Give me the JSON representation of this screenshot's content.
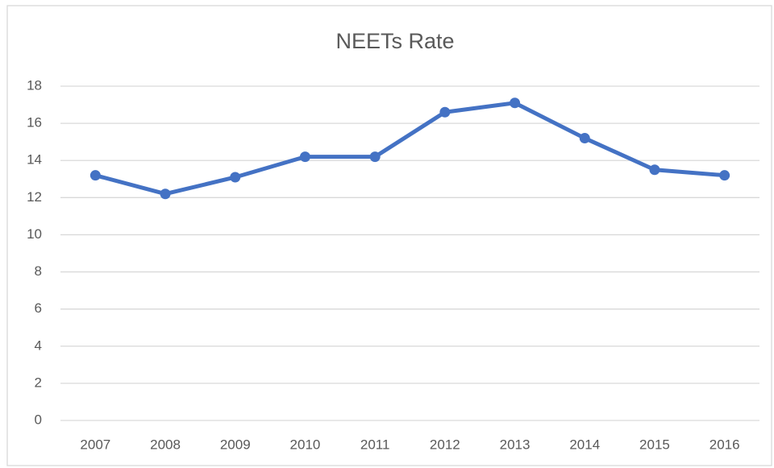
{
  "chart_data": {
    "type": "line",
    "title": "NEETs Rate",
    "categories": [
      "2007",
      "2008",
      "2009",
      "2010",
      "2011",
      "2012",
      "2013",
      "2014",
      "2015",
      "2016"
    ],
    "values": [
      13.2,
      12.2,
      13.1,
      14.2,
      14.2,
      16.6,
      17.1,
      15.2,
      13.5,
      13.2
    ],
    "color": "#4472c4",
    "ylim": [
      0,
      18
    ],
    "yticks": [
      0,
      2,
      4,
      6,
      8,
      10,
      12,
      14,
      16,
      18
    ],
    "grid": true
  }
}
